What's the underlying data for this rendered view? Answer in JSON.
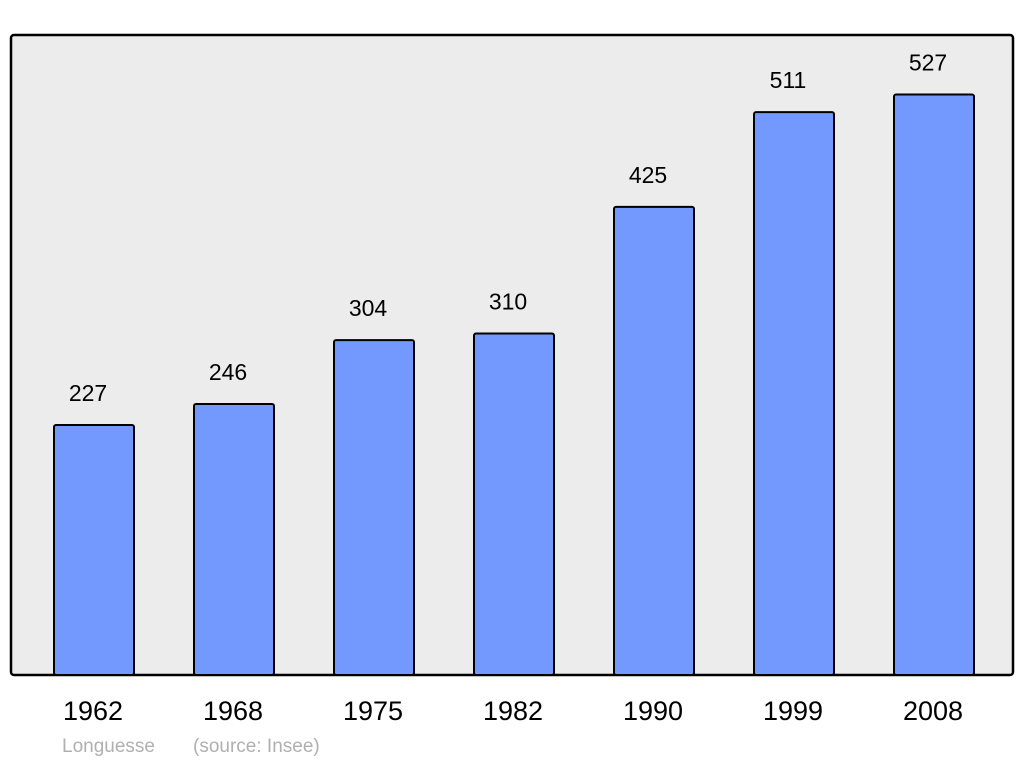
{
  "chart_data": {
    "type": "bar",
    "title": "Longuesse",
    "source": "(source: Insee)",
    "categories": [
      "1962",
      "1968",
      "1975",
      "1982",
      "1990",
      "1999",
      "2008"
    ],
    "values": [
      227,
      246,
      304,
      310,
      425,
      511,
      527
    ],
    "color": "#7399ff",
    "ylim": [
      0,
      581
    ]
  }
}
